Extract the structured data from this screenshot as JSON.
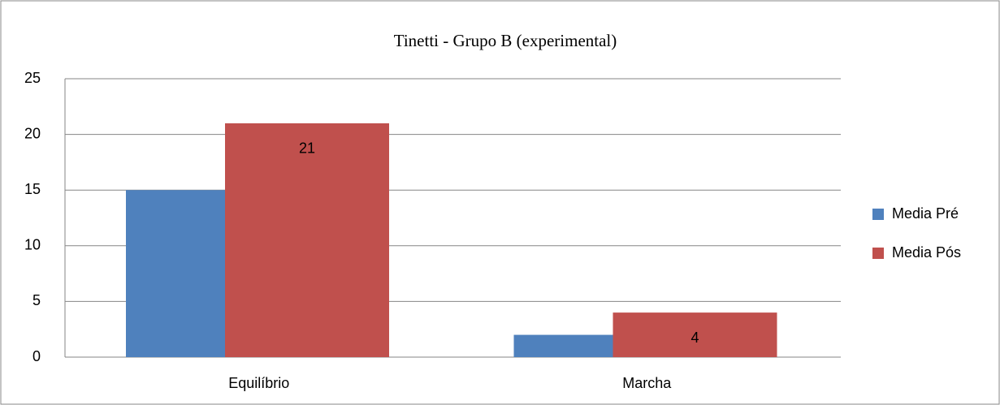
{
  "chart_data": {
    "type": "bar",
    "title": "Tinetti - Grupo B (experimental)",
    "categories": [
      "Equilíbrio",
      "Marcha"
    ],
    "series": [
      {
        "name": "Media Pré",
        "color": "#4f81bd",
        "values": [
          15,
          2
        ]
      },
      {
        "name": "Media Pós",
        "color": "#c0504d",
        "values": [
          21,
          4
        ],
        "value_labels": [
          "21",
          "4"
        ]
      }
    ],
    "ylim": [
      0,
      25
    ],
    "yticks": [
      0,
      5,
      10,
      15,
      20,
      25
    ],
    "grid": true,
    "legend": "right"
  }
}
